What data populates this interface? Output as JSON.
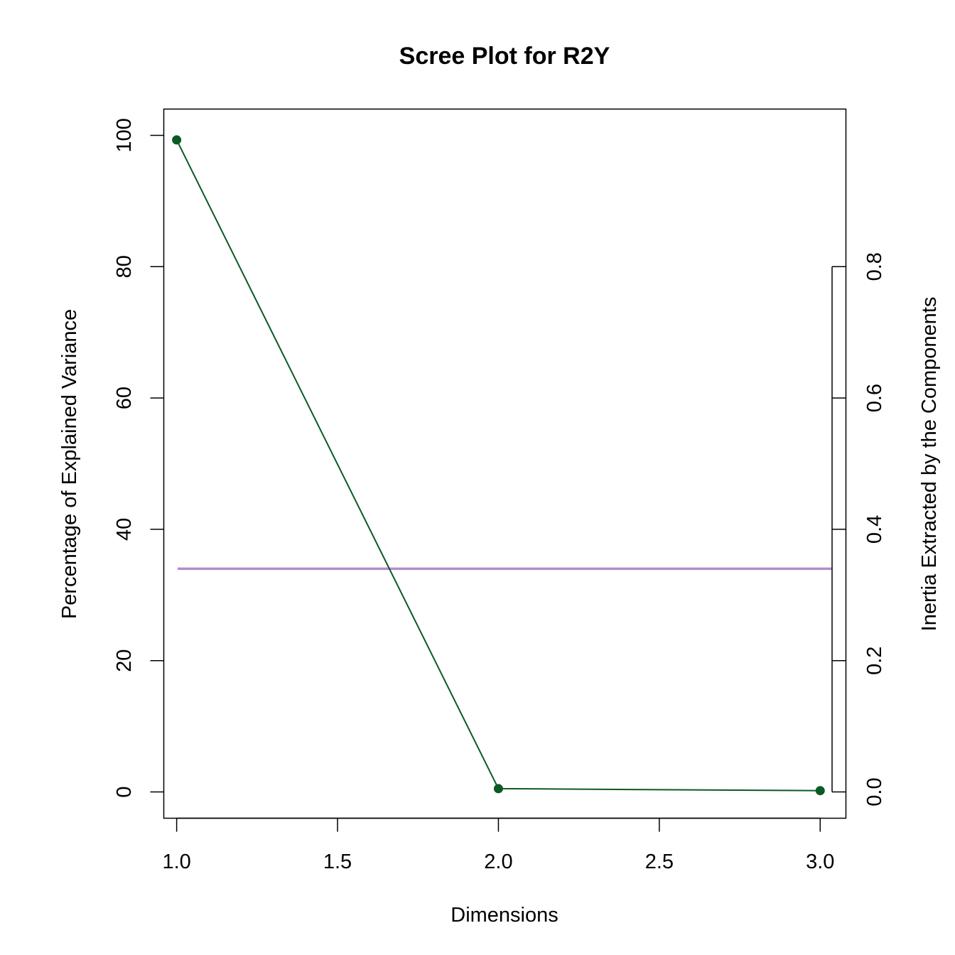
{
  "chart_data": {
    "type": "line",
    "title": "Scree Plot for R2Y",
    "xlabel": "Dimensions",
    "ylabel": "Percentage of Explained Variance",
    "ylabel_right": "Inertia Extracted by the Components",
    "xlim": [
      0.96,
      3.08
    ],
    "ylim": [
      -4,
      104
    ],
    "right_axis_lim": [
      -0.04,
      1.04
    ],
    "x_ticks": [
      "1.0",
      "1.5",
      "2.0",
      "2.5",
      "3.0"
    ],
    "y_ticks": [
      "0",
      "20",
      "40",
      "60",
      "80",
      "100"
    ],
    "right_ticks": [
      "0.0",
      "0.2",
      "0.4",
      "0.6",
      "0.8"
    ],
    "series": [
      {
        "x": [
          1,
          2,
          3
        ],
        "y": [
          99.3,
          0.5,
          0.2
        ],
        "color": "#0b5a24"
      }
    ],
    "reference_line": {
      "y": 34,
      "color": "#b48cc8"
    },
    "grid": false,
    "legend": "none"
  }
}
